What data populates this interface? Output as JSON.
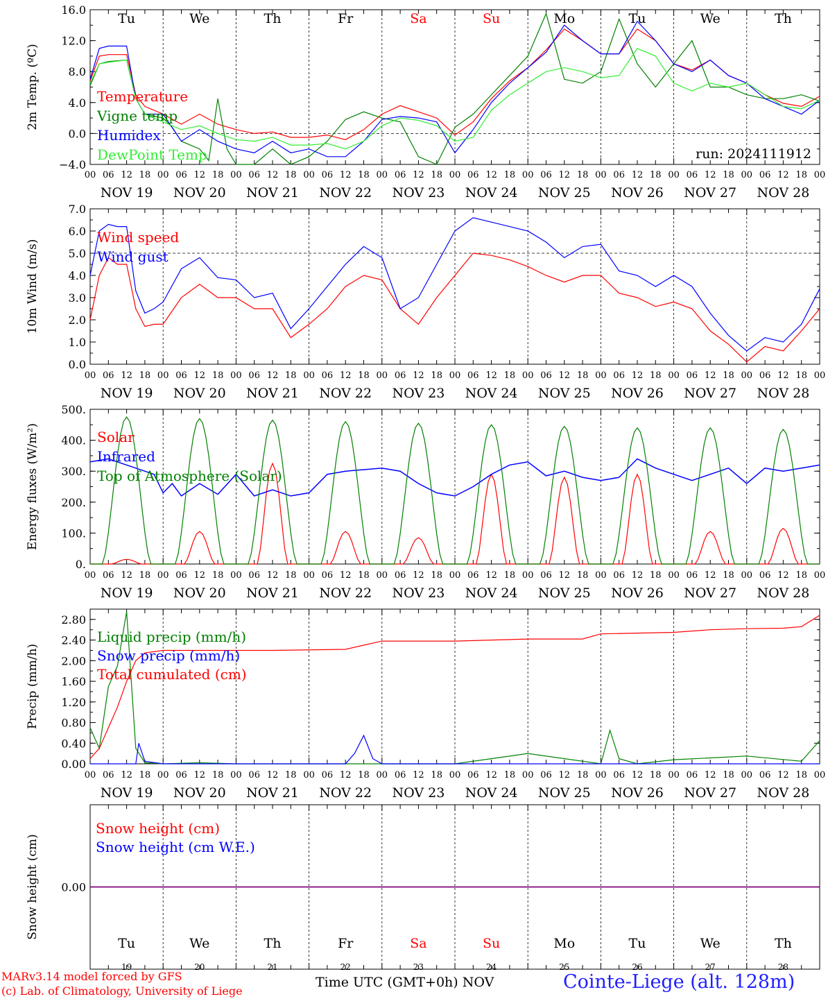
{
  "colors": {
    "red": "#ff0000",
    "green": "#008000",
    "blue": "#0000ff",
    "lightgreen": "#33ee33",
    "purple": "#800080",
    "black": "#000000"
  },
  "days": {
    "weekday": [
      "Tu",
      "We",
      "Th",
      "Fr",
      "Sa",
      "Su",
      "Mo",
      "Tu",
      "We",
      "Th"
    ],
    "weekend_index": [
      4,
      5
    ],
    "dates": [
      "NOV 19",
      "NOV 20",
      "NOV 21",
      "NOV 22",
      "NOV 23",
      "NOV 24",
      "NOV 25",
      "NOV 26",
      "NOV 27",
      "NOV 28"
    ],
    "daynums": [
      "19",
      "20",
      "21",
      "22",
      "23",
      "24",
      "25",
      "26",
      "27",
      "28"
    ],
    "hours": [
      "00",
      "06",
      "12",
      "18"
    ],
    "last_hour": "00"
  },
  "footer": {
    "credit1": "MARv3.14 model forced by GFS",
    "credit2": "(c) Lab. of Climatology, University of Liege",
    "xtitle": "Time UTC (GMT+0h) NOV",
    "station": "Cointe-Liege (alt. 128m)"
  },
  "chart_data": [
    {
      "type": "line",
      "ylabel": "2m Temp. (ºC)",
      "ylim": [
        -4,
        16
      ],
      "yticks": [
        "16.0",
        "12.0",
        "8.0",
        "4.0",
        "0.0",
        "−4.0"
      ],
      "yticks_values": [
        16,
        12,
        8,
        4,
        0,
        -4
      ],
      "ref_line": 0,
      "annotation": "run: 2024111912",
      "x_unit": "hours since NOV 19 00 UTC",
      "series": [
        {
          "name": "Temperature",
          "color": "red",
          "x": [
            0,
            3,
            6,
            12,
            15,
            18,
            24,
            30,
            36,
            42,
            48,
            54,
            60,
            66,
            72,
            78,
            84,
            90,
            96,
            102,
            108,
            114,
            120,
            126,
            132,
            138,
            144,
            150,
            156,
            162,
            168,
            174,
            180,
            186,
            192,
            198,
            204,
            210,
            216,
            222,
            228,
            234,
            240
          ],
          "y": [
            6.8,
            10,
            10.2,
            10.2,
            5,
            3.5,
            2.5,
            1.2,
            2.5,
            1.2,
            0.5,
            0,
            0.2,
            -0.5,
            -0.5,
            -0.2,
            -0.8,
            0.5,
            2.5,
            3.6,
            2.8,
            2,
            -0.2,
            1.5,
            4.5,
            6.8,
            8.5,
            10.8,
            13.5,
            12,
            10.3,
            10.3,
            13.5,
            12,
            9,
            8.2,
            9.5,
            7.5,
            6.5,
            5,
            3.9,
            3.5,
            4.8
          ]
        },
        {
          "name": "Vigne temp",
          "color": "green",
          "x": [
            0,
            3,
            6,
            12,
            15,
            18,
            24,
            27,
            30,
            36,
            39,
            42,
            45,
            48,
            54,
            60,
            66,
            72,
            78,
            84,
            90,
            96,
            102,
            108,
            114,
            120,
            126,
            132,
            138,
            144,
            150,
            156,
            162,
            168,
            174,
            180,
            186,
            192,
            198,
            204,
            210,
            216,
            222,
            228,
            234,
            240
          ],
          "y": [
            6.2,
            9,
            9.3,
            9.5,
            4.5,
            2.5,
            2,
            0.8,
            -1,
            -2,
            -3.5,
            4.5,
            -2,
            -4,
            -4,
            -2,
            -4,
            -3,
            -1,
            1.8,
            2.8,
            2,
            1.5,
            -3,
            -4,
            0.8,
            2.5,
            5,
            7.5,
            10,
            15.5,
            7,
            6.5,
            8,
            14.8,
            9,
            6,
            9,
            12,
            6,
            6,
            5,
            4.5,
            4.5,
            5,
            4.2
          ]
        },
        {
          "name": "Humidex",
          "color": "blue",
          "x": [
            0,
            3,
            6,
            12,
            15,
            18,
            24,
            30,
            36,
            42,
            48,
            54,
            60,
            66,
            72,
            78,
            84,
            90,
            96,
            102,
            108,
            114,
            120,
            126,
            132,
            138,
            144,
            150,
            156,
            162,
            168,
            174,
            180,
            186,
            192,
            198,
            204,
            210,
            216,
            222,
            228,
            234,
            240
          ],
          "y": [
            7,
            11,
            11.3,
            11.3,
            4.5,
            2.5,
            2.5,
            -1,
            0.5,
            -1,
            -2,
            -2.5,
            -1,
            -2.5,
            -2,
            -3,
            -3,
            -1,
            1.8,
            2.2,
            2,
            1.5,
            -2.5,
            0.5,
            4,
            6.5,
            8.5,
            10.5,
            14,
            12,
            10.3,
            10.3,
            14.5,
            12,
            9,
            8,
            9.5,
            7.5,
            6.5,
            4.5,
            3.5,
            2.5,
            4.3
          ]
        },
        {
          "name": "DewPoint Temp",
          "color": "lightgreen",
          "x": [
            0,
            3,
            6,
            12,
            15,
            18,
            24,
            30,
            36,
            42,
            48,
            54,
            60,
            66,
            72,
            78,
            84,
            90,
            96,
            102,
            108,
            114,
            120,
            126,
            132,
            138,
            144,
            150,
            156,
            162,
            168,
            174,
            180,
            186,
            192,
            198,
            204,
            210,
            216,
            222,
            228,
            234,
            240
          ],
          "y": [
            6.5,
            9,
            9.2,
            9.5,
            4.5,
            2.5,
            1.5,
            0.5,
            1,
            0,
            -0.8,
            -1,
            -0.5,
            -1.5,
            -1.5,
            -1.3,
            -2,
            -1,
            1,
            2,
            1.7,
            1,
            -1,
            -0.5,
            3,
            5,
            6.5,
            8,
            8.5,
            8,
            7.2,
            7.5,
            11,
            10,
            6.5,
            5.5,
            6.5,
            6,
            6.5,
            5,
            3.5,
            3.2,
            4.3
          ]
        }
      ]
    },
    {
      "type": "line",
      "ylabel": "10m Wind (m/s)",
      "ylim": [
        0,
        7
      ],
      "yticks": [
        "7.0",
        "6.0",
        "5.0",
        "4.0",
        "3.0",
        "2.0",
        "1.0",
        "0.0"
      ],
      "yticks_values": [
        7,
        6,
        5,
        4,
        3,
        2,
        1,
        0
      ],
      "ref_line": 5,
      "x_unit": "hours since NOV 19 00 UTC",
      "series": [
        {
          "name": "Wind speed",
          "color": "red",
          "x": [
            0,
            3,
            6,
            9,
            12,
            15,
            18,
            21,
            24,
            30,
            36,
            42,
            48,
            54,
            60,
            66,
            72,
            78,
            84,
            90,
            96,
            102,
            108,
            114,
            120,
            126,
            132,
            138,
            144,
            150,
            156,
            162,
            168,
            174,
            180,
            186,
            192,
            198,
            204,
            210,
            216,
            222,
            228,
            234,
            240
          ],
          "y": [
            2,
            4,
            4.8,
            4.5,
            4.5,
            2.5,
            1.7,
            1.8,
            1.8,
            3,
            3.6,
            3,
            3,
            2.5,
            2.5,
            1.2,
            1.8,
            2.5,
            3.5,
            4,
            3.8,
            2.5,
            1.8,
            3,
            4,
            5,
            4.9,
            4.7,
            4.4,
            4,
            3.7,
            4,
            4,
            3.2,
            3,
            2.6,
            2.8,
            2.5,
            1.5,
            0.9,
            0.1,
            0.8,
            0.6,
            1.5,
            2.5
          ]
        },
        {
          "name": "Wind gust",
          "color": "blue",
          "x": [
            0,
            3,
            6,
            9,
            12,
            15,
            18,
            21,
            24,
            30,
            36,
            42,
            48,
            54,
            60,
            66,
            72,
            78,
            84,
            90,
            96,
            102,
            108,
            114,
            120,
            126,
            132,
            138,
            144,
            150,
            156,
            162,
            168,
            174,
            180,
            186,
            192,
            198,
            204,
            210,
            216,
            222,
            228,
            234,
            240
          ],
          "y": [
            4,
            6,
            6.3,
            6.2,
            6.2,
            3.3,
            2.3,
            2.5,
            2.8,
            4.3,
            4.8,
            3.9,
            3.8,
            3,
            3.2,
            1.6,
            2.5,
            3.5,
            4.5,
            5.3,
            4.8,
            2.5,
            3,
            4.5,
            6,
            6.6,
            6.4,
            6.2,
            6,
            5.5,
            4.8,
            5.3,
            5.4,
            4.2,
            4,
            3.5,
            4,
            3.5,
            2.3,
            1.3,
            0.6,
            1.2,
            1,
            1.8,
            3.4
          ]
        }
      ]
    },
    {
      "type": "line",
      "ylabel": "Energy fluxes (W/m²)",
      "ylim": [
        0,
        500
      ],
      "yticks": [
        "500.",
        "400.",
        "300.",
        "200.",
        "100.",
        "0."
      ],
      "yticks_values": [
        500,
        400,
        300,
        200,
        100,
        0
      ],
      "x_unit": "hours since NOV 19 00 UTC",
      "series": [
        {
          "name": "Solar",
          "color": "red",
          "peaks": [
            15,
            105,
            325,
            105,
            85,
            290,
            280,
            290,
            105,
            115
          ],
          "peak_hour": 12,
          "half_width": 5
        },
        {
          "name": "Infrared",
          "color": "blue",
          "x": [
            0,
            6,
            12,
            18,
            21,
            24,
            27,
            30,
            36,
            42,
            48,
            54,
            60,
            66,
            72,
            78,
            84,
            90,
            96,
            102,
            108,
            114,
            120,
            126,
            132,
            138,
            144,
            150,
            156,
            162,
            168,
            174,
            180,
            186,
            192,
            198,
            204,
            210,
            216,
            222,
            228,
            234,
            240
          ],
          "y": [
            330,
            340,
            320,
            300,
            290,
            230,
            260,
            220,
            260,
            225,
            290,
            220,
            240,
            220,
            230,
            290,
            300,
            305,
            310,
            300,
            260,
            230,
            220,
            250,
            290,
            320,
            330,
            285,
            300,
            280,
            270,
            280,
            340,
            310,
            290,
            270,
            290,
            310,
            260,
            310,
            300,
            310,
            320
          ]
        },
        {
          "name": "Top of Atmosphere (Solar)",
          "color": "green",
          "peaks": [
            475,
            470,
            465,
            460,
            455,
            450,
            445,
            440,
            440,
            435
          ],
          "peak_hour": 12,
          "half_width": 8
        }
      ]
    },
    {
      "type": "line",
      "ylabel": "Precip (mm/h)",
      "ylim": [
        0,
        3.0
      ],
      "yticks": [
        "2.80",
        "2.40",
        "2.00",
        "1.60",
        "1.20",
        "0.80",
        "0.40",
        "0.00"
      ],
      "yticks_values": [
        2.8,
        2.4,
        2.0,
        1.6,
        1.2,
        0.8,
        0.4,
        0.0
      ],
      "x_unit": "hours since NOV 19 00 UTC",
      "series": [
        {
          "name": "Liquid precip (mm/h)",
          "color": "green",
          "x": [
            0,
            3,
            6,
            9,
            12,
            15,
            18,
            24,
            36,
            48,
            60,
            84,
            96,
            108,
            120,
            144,
            168,
            171,
            174,
            180,
            192,
            216,
            234,
            240
          ],
          "y": [
            0.7,
            0.3,
            1.5,
            1.9,
            2.95,
            0.3,
            0.02,
            0,
            0.02,
            0,
            0,
            0,
            0,
            0,
            0,
            0.2,
            0,
            0.65,
            0.1,
            0,
            0.08,
            0.15,
            0.05,
            0.45
          ]
        },
        {
          "name": "Snow precip (mm/h)",
          "color": "blue",
          "x": [
            0,
            12,
            15,
            16,
            18,
            24,
            84,
            87,
            90,
            93,
            96,
            120,
            240
          ],
          "y": [
            0,
            0,
            0,
            0.4,
            0.05,
            0,
            0,
            0.2,
            0.55,
            0.1,
            0,
            0,
            0
          ]
        },
        {
          "name": "Total cumulated (cm)",
          "color": "red",
          "x": [
            0,
            3,
            6,
            9,
            12,
            15,
            18,
            24,
            36,
            60,
            84,
            90,
            96,
            120,
            144,
            156,
            162,
            168,
            192,
            204,
            216,
            228,
            234,
            240
          ],
          "y": [
            0.1,
            0.3,
            0.7,
            1.1,
            1.6,
            2.0,
            2.15,
            2.2,
            2.2,
            2.2,
            2.22,
            2.3,
            2.38,
            2.38,
            2.42,
            2.42,
            2.42,
            2.52,
            2.55,
            2.6,
            2.62,
            2.63,
            2.66,
            2.88
          ]
        }
      ]
    },
    {
      "type": "line",
      "ylabel": "Snow height (cm)",
      "ylim": [
        -1,
        1
      ],
      "yticks": [
        "0.00"
      ],
      "yticks_values": [
        0
      ],
      "x_unit": "hours since NOV 19 00 UTC",
      "series": [
        {
          "name": "Snow height (cm)",
          "color": "red",
          "x": [
            0,
            240
          ],
          "y": [
            0,
            0
          ]
        },
        {
          "name": "Snow height (cm W.E.)",
          "color": "blue",
          "x": [
            0,
            240
          ],
          "y": [
            0,
            0
          ]
        }
      ]
    }
  ]
}
